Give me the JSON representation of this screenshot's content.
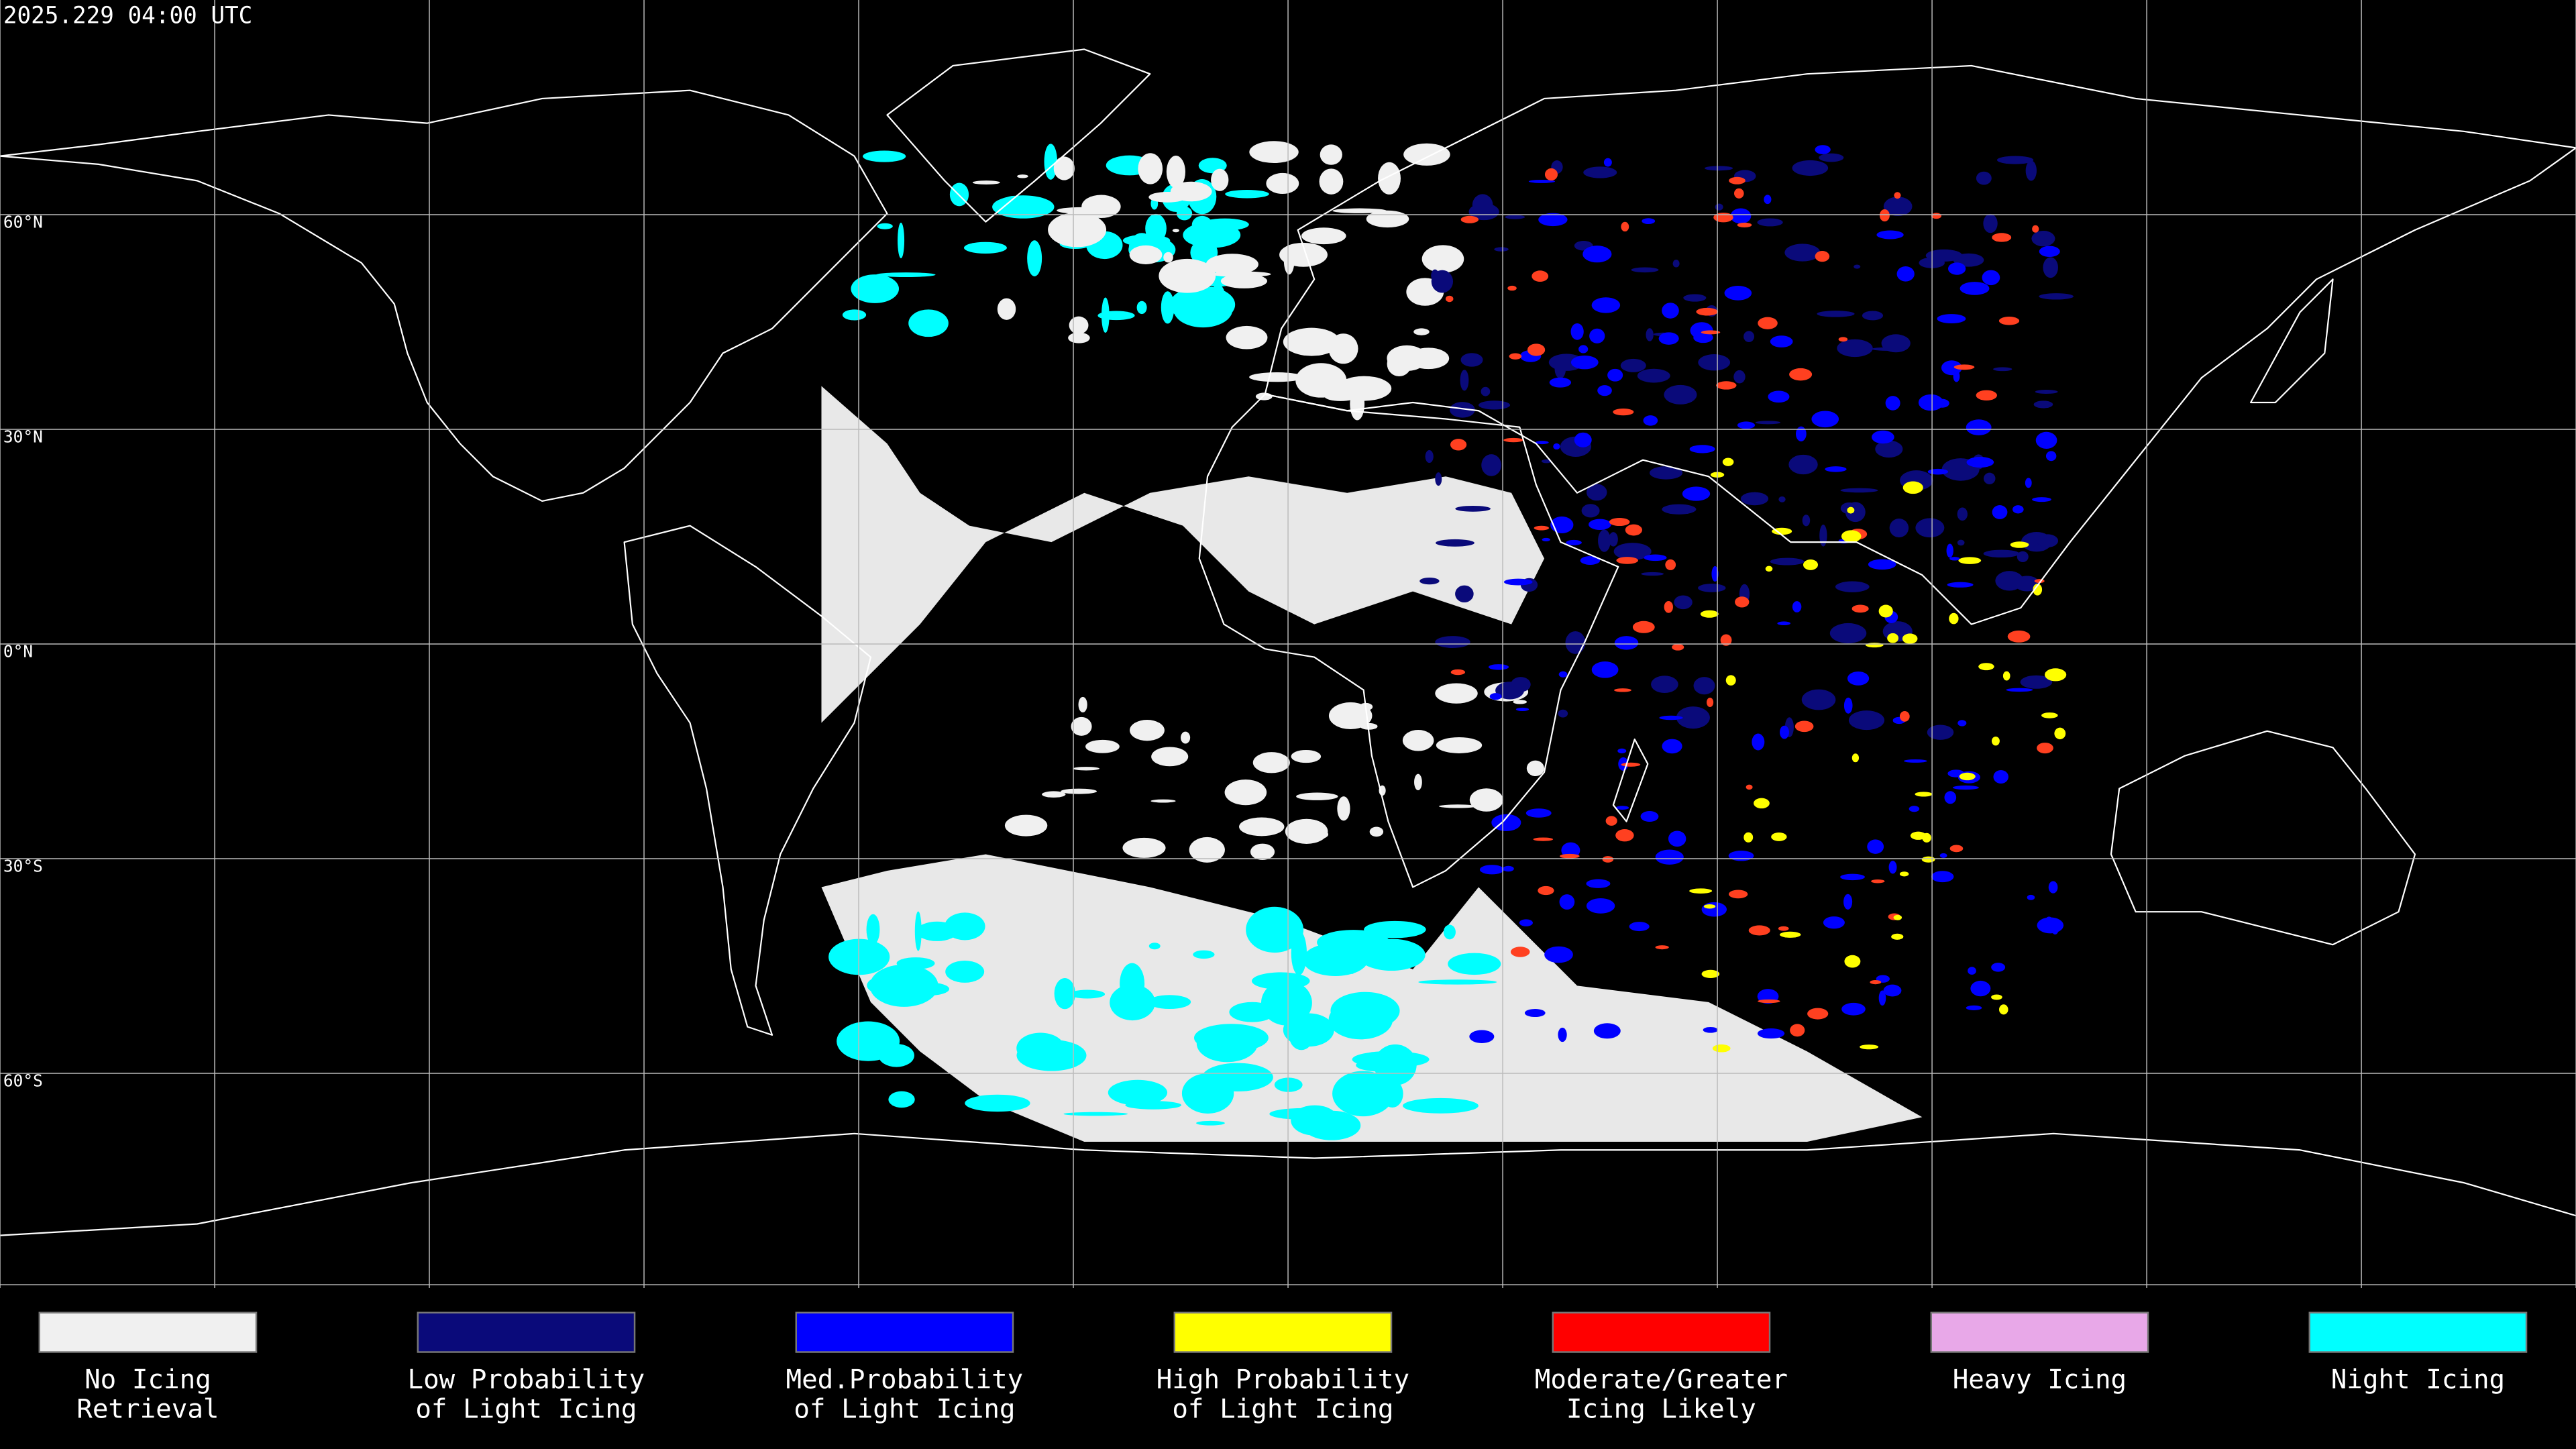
{
  "timestamp": "2025.229 04:00 UTC",
  "latitude_labels": [
    "60°N",
    "30°N",
    "0°N",
    "30°S",
    "60°S"
  ],
  "legend": [
    {
      "label": [
        "No Icing",
        "Retrieval"
      ],
      "color": "#f0f0f0"
    },
    {
      "label": [
        "Low Probability",
        "of Light Icing"
      ],
      "color": "#0a0a7a"
    },
    {
      "label": [
        "Med.Probability",
        "of Light Icing"
      ],
      "color": "#0000ff"
    },
    {
      "label": [
        "High Probability",
        "of Light Icing"
      ],
      "color": "#ffff00"
    },
    {
      "label": [
        "Moderate/Greater",
        "Icing Likely"
      ],
      "color": "#ff0000"
    },
    {
      "label": [
        "Heavy Icing"
      ],
      "color": "#e8a8e8"
    },
    {
      "label": [
        "Night Icing"
      ],
      "color": "#00ffff"
    }
  ]
}
